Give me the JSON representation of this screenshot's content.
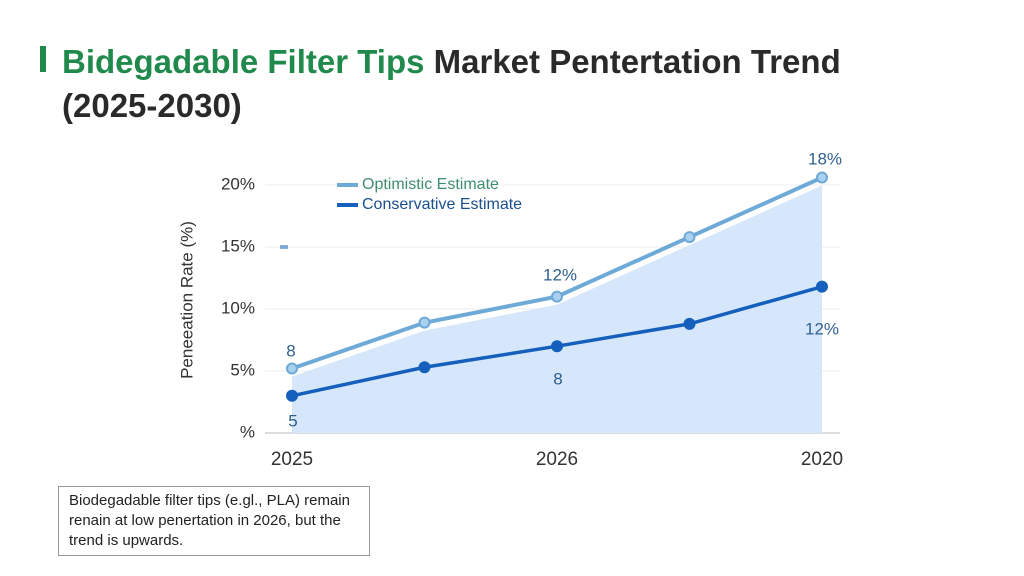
{
  "chart_data": {
    "type": "line",
    "title_highlight": "Bidegadable Filter Tips",
    "title": "Market Pentertation Trend (2025-2030)",
    "y_label": "Peneeation Rate (%)",
    "categories": [
      "2025",
      null,
      "2026",
      null,
      "2020"
    ],
    "series": [
      {
        "name": "Optimistic Estimate",
        "color": "#6eaad8",
        "values": [
          5.2,
          8.9,
          11.0,
          15.8,
          20.6
        ]
      },
      {
        "name": "Conservative Estimate",
        "color": "#1560bd",
        "values": [
          3.0,
          5.3,
          7.0,
          8.8,
          11.8
        ]
      }
    ],
    "area_color": "#d6e7fb",
    "ylim": [
      0,
      20
    ],
    "yticks": [
      {
        "value": 0,
        "label": "%"
      },
      {
        "value": 5,
        "label": "5%"
      },
      {
        "value": 10,
        "label": "10%"
      },
      {
        "value": 15,
        "label": "15%"
      },
      {
        "value": 20,
        "label": "20%"
      }
    ],
    "grid": true,
    "annotations": [
      "8",
      "12%",
      "18%",
      "5",
      "8",
      "12%"
    ],
    "note": "Biodegadable filter tips (e.gl., PLA) remain renain at low penertation in 2026, but the trend is upwards."
  }
}
